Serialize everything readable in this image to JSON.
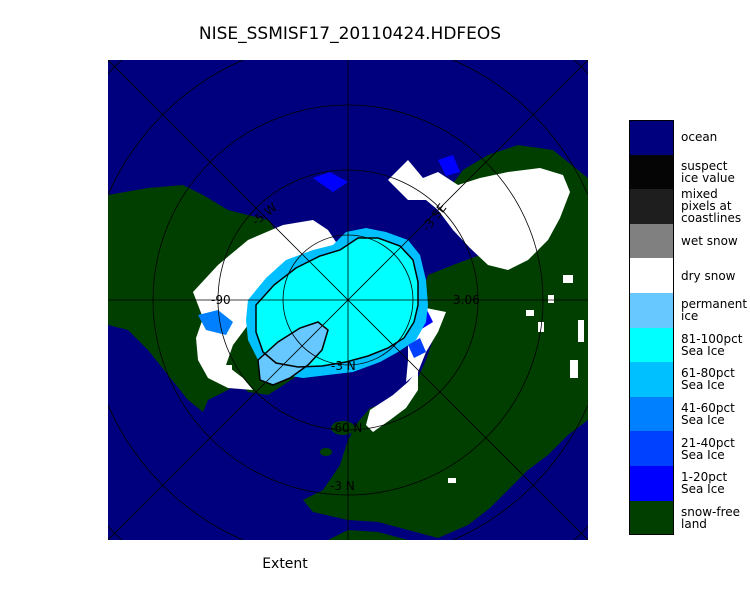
{
  "title": "NISE_SSMISF17_20110424.HDFEOS",
  "footer_label": "Extent",
  "map": {
    "projection": "north-polar",
    "gridline_labels": {
      "lon_left": "-90",
      "lon_right": "3.06",
      "lon_ul": "-5 W",
      "lon_ur": "-3 SE",
      "lon_lower": "-3 N",
      "lat_lower": "-60 N",
      "lat_bottom": "-3 N"
    },
    "colors": {
      "ocean": "#00007f",
      "land": "#003f00",
      "dry_snow": "#ffffff",
      "sea_ice_full": "#00ffff",
      "permanent_ice": "#66c8ff",
      "sea_ice_61_80": "#00c0ff",
      "sea_ice_41_60": "#0080ff",
      "sea_ice_21_40": "#0040ff",
      "sea_ice_1_20": "#0000ff"
    }
  },
  "legend": [
    {
      "label": "ocean",
      "color": "#00007f"
    },
    {
      "label": "suspect\nice value",
      "color": "#050505"
    },
    {
      "label": "mixed\npixels at\ncoastlines",
      "color": "#1e1e1e"
    },
    {
      "label": "wet snow",
      "color": "#808080"
    },
    {
      "label": "dry snow",
      "color": "#ffffff"
    },
    {
      "label": "permanent\nice",
      "color": "#66c8ff"
    },
    {
      "label": "81-100pct\nSea Ice",
      "color": "#00ffff"
    },
    {
      "label": "61-80pct\nSea Ice",
      "color": "#00c0ff"
    },
    {
      "label": "41-60pct\nSea Ice",
      "color": "#0080ff"
    },
    {
      "label": "21-40pct\nSea Ice",
      "color": "#0040ff"
    },
    {
      "label": "1-20pct\nSea Ice",
      "color": "#0000ff"
    },
    {
      "label": "snow-free\nland",
      "color": "#003f00"
    }
  ]
}
